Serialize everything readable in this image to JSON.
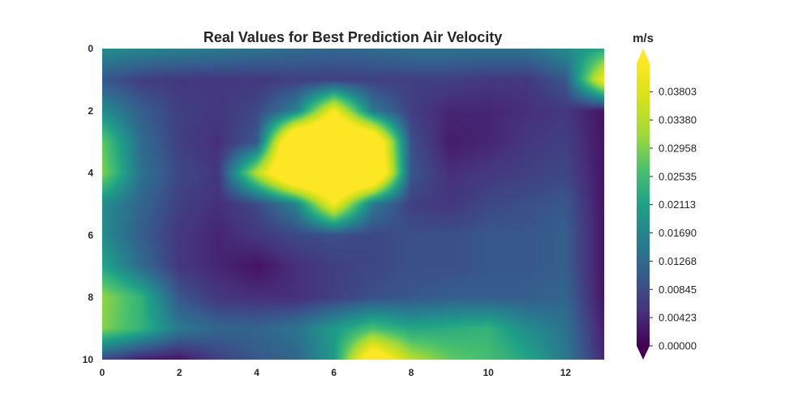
{
  "chart_data": {
    "type": "heatmap",
    "title": "Real Values for Best Prediction Air Velocity",
    "colorbar_label": "m/s",
    "colormap": "viridis",
    "colorbar_extend": "both",
    "xlim": [
      0,
      13
    ],
    "ylim": [
      10,
      0
    ],
    "y_inverted": true,
    "x_ticks": [
      "0",
      "2",
      "4",
      "6",
      "8",
      "10",
      "12"
    ],
    "y_ticks": [
      "0",
      "2",
      "4",
      "6",
      "8",
      "10"
    ],
    "colorbar_ticks": [
      "0.00000",
      "0.00423",
      "0.00845",
      "0.01268",
      "0.01690",
      "0.02113",
      "0.02535",
      "0.02958",
      "0.03380",
      "0.03803"
    ],
    "vmin": 0.0,
    "vmax": 0.0423,
    "x": [
      0,
      1,
      2,
      3,
      4,
      5,
      6,
      7,
      8,
      9,
      10,
      11,
      12,
      13
    ],
    "y": [
      0,
      1,
      2,
      3,
      4,
      5,
      6,
      7,
      8,
      9,
      10
    ],
    "z": [
      [
        0.018,
        0.017,
        0.016,
        0.015,
        0.014,
        0.013,
        0.012,
        0.013,
        0.014,
        0.014,
        0.014,
        0.014,
        0.018,
        0.022
      ],
      [
        0.01,
        0.007,
        0.006,
        0.006,
        0.006,
        0.007,
        0.007,
        0.007,
        0.007,
        0.007,
        0.006,
        0.006,
        0.01,
        0.042
      ],
      [
        0.018,
        0.011,
        0.007,
        0.006,
        0.008,
        0.016,
        0.042,
        0.015,
        0.007,
        0.004,
        0.004,
        0.005,
        0.006,
        0.002
      ],
      [
        0.028,
        0.013,
        0.007,
        0.005,
        0.01,
        0.06,
        0.06,
        0.055,
        0.009,
        0.003,
        0.004,
        0.006,
        0.007,
        0.002
      ],
      [
        0.03,
        0.014,
        0.008,
        0.006,
        0.034,
        0.06,
        0.06,
        0.06,
        0.01,
        0.005,
        0.006,
        0.007,
        0.008,
        0.002
      ],
      [
        0.018,
        0.012,
        0.007,
        0.005,
        0.008,
        0.016,
        0.042,
        0.015,
        0.007,
        0.006,
        0.008,
        0.009,
        0.01,
        0.002
      ],
      [
        0.018,
        0.011,
        0.006,
        0.004,
        0.006,
        0.008,
        0.009,
        0.008,
        0.009,
        0.009,
        0.01,
        0.01,
        0.011,
        0.002
      ],
      [
        0.022,
        0.013,
        0.006,
        0.004,
        0.002,
        0.005,
        0.007,
        0.008,
        0.009,
        0.009,
        0.01,
        0.01,
        0.011,
        0.002
      ],
      [
        0.031,
        0.024,
        0.01,
        0.006,
        0.005,
        0.005,
        0.007,
        0.009,
        0.01,
        0.011,
        0.011,
        0.011,
        0.012,
        0.002
      ],
      [
        0.03,
        0.024,
        0.015,
        0.012,
        0.012,
        0.014,
        0.02,
        0.026,
        0.022,
        0.023,
        0.024,
        0.018,
        0.014,
        0.003
      ],
      [
        0.008,
        0.003,
        0.002,
        0.007,
        0.01,
        0.012,
        0.02,
        0.05,
        0.034,
        0.028,
        0.026,
        0.022,
        0.015,
        0.004
      ]
    ]
  }
}
